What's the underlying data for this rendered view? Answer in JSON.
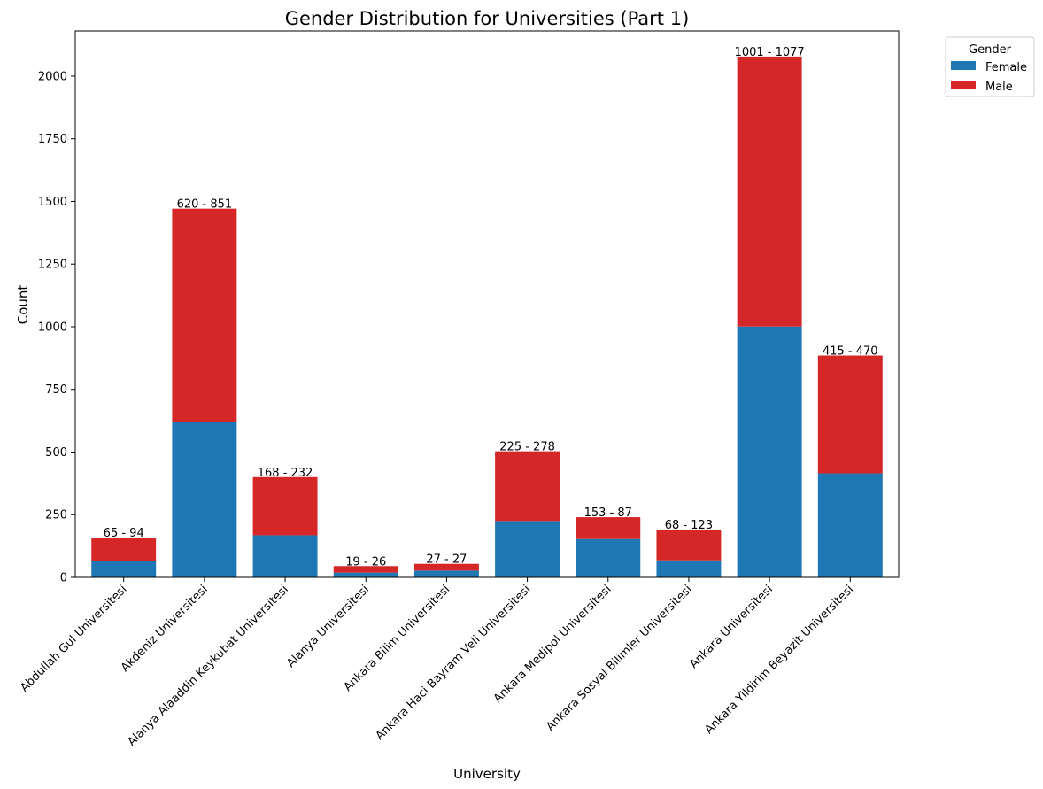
{
  "chart_data": {
    "type": "bar",
    "stacked": true,
    "title": "Gender Distribution for Universities (Part 1)",
    "xlabel": "University",
    "ylabel": "Count",
    "ylim": [
      0,
      2180
    ],
    "yticks": [
      0,
      250,
      500,
      750,
      1000,
      1250,
      1500,
      1750,
      2000
    ],
    "grid": false,
    "legend": {
      "title": "Gender",
      "placement": "outside-top-right"
    },
    "categories": [
      "Abdullah Gul Universitesi",
      "Akdeniz Universitesi",
      "Alanya Alaaddin Keykubat Universitesi",
      "Alanya Universitesi",
      "Ankara Bilim Universitesi",
      "Ankara Haci Bayram Veli Universitesi",
      "Ankara Medipol Universitesi",
      "Ankara Sosyal Bilimler Universitesi",
      "Ankara Universitesi",
      "Ankara Yildirim Beyazit Universitesi"
    ],
    "series": [
      {
        "name": "Female",
        "color": "#1f77b4",
        "values": [
          65,
          620,
          168,
          19,
          27,
          225,
          153,
          68,
          1001,
          415
        ]
      },
      {
        "name": "Male",
        "color": "#d62728",
        "values": [
          94,
          851,
          232,
          26,
          27,
          278,
          87,
          123,
          1077,
          470
        ]
      }
    ],
    "bar_labels": [
      "65 - 94",
      "620 - 851",
      "168 - 232",
      "19 - 26",
      "27 - 27",
      "225 - 278",
      "153 - 87",
      "68 - 123",
      "1001 - 1077",
      "415 - 470"
    ]
  }
}
